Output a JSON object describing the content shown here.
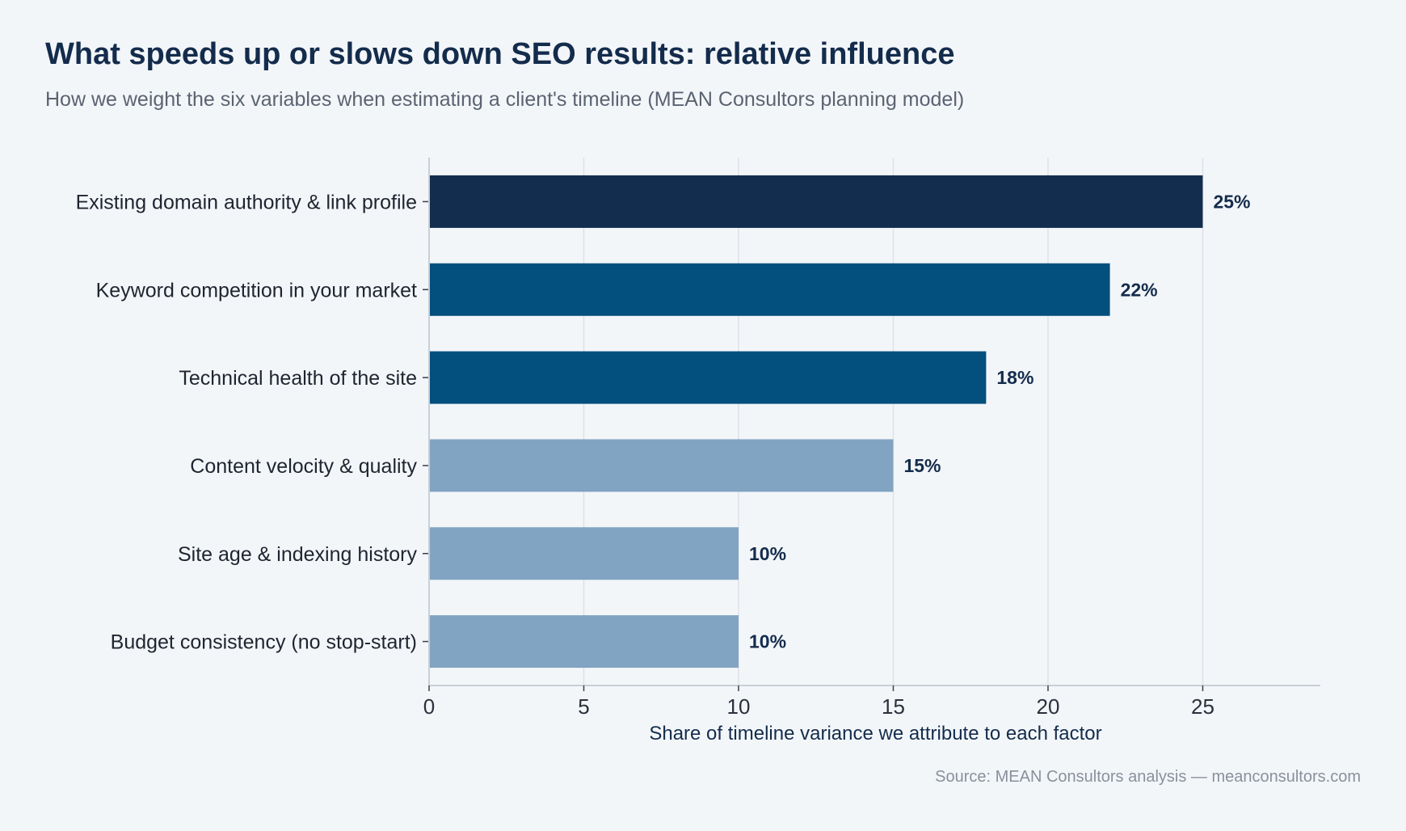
{
  "title": "What speeds up or slows down SEO results: relative influence",
  "subtitle": "How we weight the six variables when estimating a client's timeline (MEAN Consultors planning model)",
  "source": "Source: MEAN Consultors analysis — meanconsultors.com",
  "chart_data": {
    "type": "bar",
    "orientation": "horizontal",
    "title": "What speeds up or slows down SEO results: relative influence",
    "subtitle": "How we weight the six variables when estimating a client's timeline (MEAN Consultors planning model)",
    "categories": [
      "Existing domain authority & link profile",
      "Keyword competition in your market",
      "Technical health of the site",
      "Content velocity & quality",
      "Site age & indexing history",
      "Budget consistency (no stop-start)"
    ],
    "values": [
      25,
      22,
      18,
      15,
      10,
      10
    ],
    "value_labels": [
      "25%",
      "22%",
      "18%",
      "15%",
      "10%",
      "10%"
    ],
    "bar_colors": [
      "#122d4d",
      "#034f7d",
      "#034f7d",
      "#80a4c1",
      "#80a4c1",
      "#80a4c1"
    ],
    "xlabel": "Share of timeline variance we attribute to each factor",
    "ylabel": "",
    "xticks": [
      0,
      5,
      10,
      15,
      20,
      25
    ],
    "xlim": [
      0,
      28.8
    ],
    "grid": "vertical",
    "legend": "none"
  }
}
